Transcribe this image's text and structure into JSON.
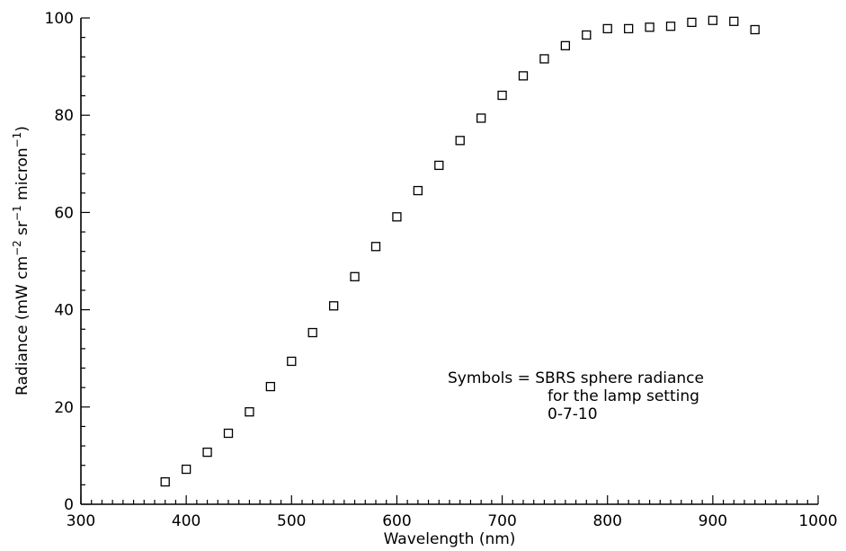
{
  "chart_data": {
    "type": "scatter",
    "title": "",
    "xlabel": "Wavelength (nm)",
    "ylabel_parts": {
      "base": "Radiance (mW cm",
      "sup1": "−2",
      "mid": " sr",
      "sup2": "−1",
      "mid2": " micron",
      "sup3": "−1",
      "end": ")"
    },
    "xlim": [
      300,
      1000
    ],
    "ylim": [
      0,
      100
    ],
    "x_major_ticks": [
      300,
      400,
      500,
      600,
      700,
      800,
      900,
      1000
    ],
    "x_tick_labels": [
      "300",
      "400",
      "500",
      "600",
      "700",
      "800",
      "900",
      "1000"
    ],
    "y_major_ticks": [
      0,
      20,
      40,
      60,
      80,
      100
    ],
    "y_tick_labels": [
      "0",
      "20",
      "40",
      "60",
      "80",
      "100"
    ],
    "x_minor_step": 10,
    "y_minor_step": 4,
    "grid": false,
    "marker": "open-square",
    "series": [
      {
        "points": [
          [
            380,
            4.6
          ],
          [
            400,
            7.2
          ],
          [
            420,
            10.7
          ],
          [
            440,
            14.6
          ],
          [
            460,
            19.0
          ],
          [
            480,
            24.2
          ],
          [
            500,
            29.4
          ],
          [
            520,
            35.3
          ],
          [
            540,
            40.8
          ],
          [
            560,
            46.8
          ],
          [
            580,
            53.0
          ],
          [
            600,
            59.1
          ],
          [
            620,
            64.5
          ],
          [
            640,
            69.7
          ],
          [
            660,
            74.8
          ],
          [
            680,
            79.4
          ],
          [
            700,
            84.1
          ],
          [
            720,
            88.1
          ],
          [
            740,
            91.6
          ],
          [
            760,
            94.3
          ],
          [
            780,
            96.5
          ],
          [
            800,
            97.8
          ],
          [
            820,
            97.8
          ],
          [
            840,
            98.1
          ],
          [
            860,
            98.3
          ],
          [
            880,
            99.1
          ],
          [
            900,
            99.5
          ],
          [
            920,
            99.3
          ],
          [
            940,
            97.6
          ]
        ]
      }
    ],
    "annotation": {
      "line1": "Symbols = SBRS sphere radiance",
      "line2": "for the lamp setting",
      "line3": "0-7-10"
    }
  }
}
